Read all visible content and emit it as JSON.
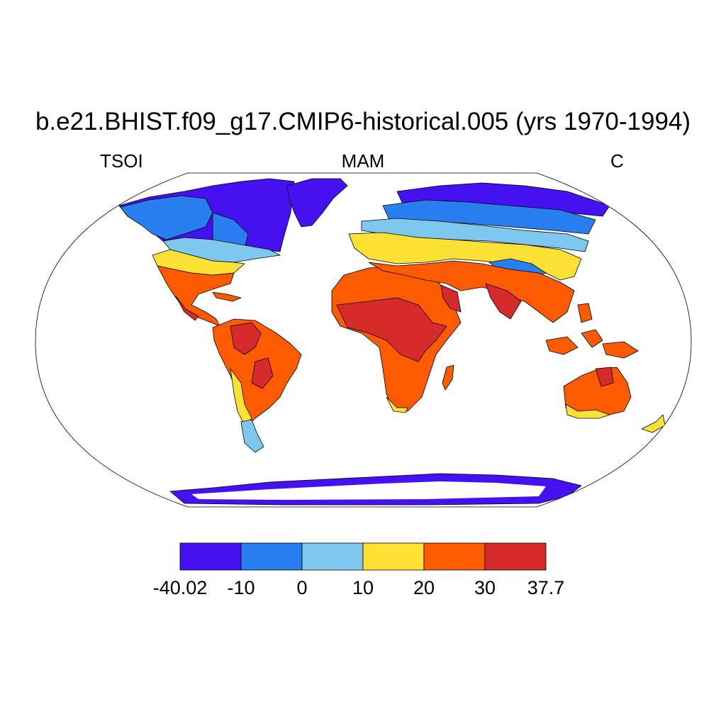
{
  "title": "b.e21.BHIST.f09_g17.CMIP6-historical.005 (yrs 1970-1994)",
  "left_label": "TSOI",
  "center_label": "MAM",
  "right_label": "C",
  "projection": "Robinson",
  "colorbar": {
    "tick_labels": [
      "-40.02",
      "-10",
      "0",
      "10",
      "20",
      "30",
      "37.7"
    ],
    "colors": [
      "#4511f0",
      "#2a7ff0",
      "#7ec7ee",
      "#fde135",
      "#fe5b00",
      "#d52b2b"
    ]
  },
  "colors": {
    "ocean": "#ffffff",
    "coastline": "#000000"
  }
}
